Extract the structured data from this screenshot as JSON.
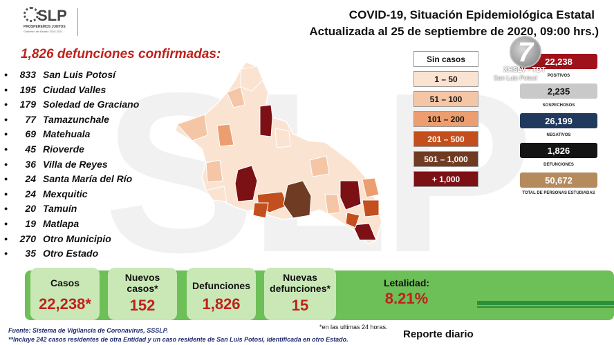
{
  "watermark": "SLP",
  "logo": {
    "word": "SLP",
    "tagline": "PROSPEREMOS JUNTOS",
    "subline": "Gobierno del Estado 2015-2021"
  },
  "title": {
    "line1": "COVID-19, Situación Epidemiológica Estatal",
    "line2": "Actualizada al 25 de septiembre de 2020, 09:00 hrs.)"
  },
  "deaths_heading": "1,826 defunciones confirmadas:",
  "municipalities": [
    {
      "bullet": "•",
      "count": "833",
      "name": "San Luis Potosí"
    },
    {
      "bullet": "•",
      "count": "195",
      "name": "Ciudad Valles"
    },
    {
      "bullet": "•",
      "count": "179",
      "name": "Soledad de Graciano"
    },
    {
      "bullet": "•",
      "count": "77",
      "name": "Tamazunchale"
    },
    {
      "bullet": "•",
      "count": "69",
      "name": "Matehuala"
    },
    {
      "bullet": "•",
      "count": "45",
      "name": "Rioverde"
    },
    {
      "bullet": "•",
      "count": "36",
      "name": "Villa de Reyes"
    },
    {
      "bullet": "•",
      "count": "24",
      "name": "Santa María del Río"
    },
    {
      "bullet": "•",
      "count": "24",
      "name": "Mexquitic"
    },
    {
      "bullet": "•",
      "count": "20",
      "name": "Tamuín"
    },
    {
      "bullet": "•",
      "count": "19",
      "name": "Matlapa"
    },
    {
      "bullet": "•",
      "count": "270",
      "name": "Otro Municipio"
    },
    {
      "bullet": "•",
      "count": "35",
      "name": "Otro Estado"
    }
  ],
  "legend": [
    {
      "label": "Sin casos",
      "color": "#ffffff",
      "text_color": "#111111"
    },
    {
      "label": "1 – 50",
      "color": "#fbe3d2",
      "text_color": "#111111"
    },
    {
      "label": "51 – 100",
      "color": "#f4c6a6",
      "text_color": "#111111"
    },
    {
      "label": "101 – 200",
      "color": "#ec9e70",
      "text_color": "#111111"
    },
    {
      "label": "201 – 500",
      "color": "#c24f1d",
      "text_color": "#ffffff"
    },
    {
      "label": "501 – 1,000",
      "color": "#6f3b22",
      "text_color": "#ffffff"
    },
    {
      "label": "+ 1,000",
      "color": "#7b1015",
      "text_color": "#ffffff"
    }
  ],
  "stats": [
    {
      "value": "22,238",
      "label": "POSITIVOS",
      "color": "#a0121a",
      "text_color": "#ffffff"
    },
    {
      "value": "2,235",
      "label": "SOSPECHOSOS",
      "color": "#c9c9c9",
      "text_color": "#111111"
    },
    {
      "value": "26,199",
      "label": "NEGATIVOS",
      "color": "#22395e",
      "text_color": "#ffffff"
    },
    {
      "value": "1,826",
      "label": "DEFUNCIONES",
      "color": "#141414",
      "text_color": "#ffffff"
    },
    {
      "value": "50,672",
      "label": "TOTAL DE PERSONAS ESTUDIADAS",
      "color": "#b58a5c",
      "text_color": "#ffffff"
    }
  ],
  "channel": {
    "number": "7",
    "name": "XHSLV - TDT",
    "location": "San Luis Potosí"
  },
  "summary": [
    {
      "label": "Casos",
      "value": "22,238*"
    },
    {
      "label": "Nuevos casos*",
      "value": "152"
    },
    {
      "label": "Defunciones",
      "value": "1,826"
    },
    {
      "label": "Nuevas defunciones*",
      "value": "15"
    },
    {
      "label": "Letalidad:",
      "value": "8.21%"
    }
  ],
  "footnote": "*en las ultimas 24 horas.",
  "source": "Fuente: Sistema de Vigilancia de Coronavirus, SSSLP.",
  "note": "**Incluye 242 casos residentes de otra Entidad y un caso residente de San Luis Potosí, identificada en otro Estado.",
  "report_label": "Reporte diario"
}
